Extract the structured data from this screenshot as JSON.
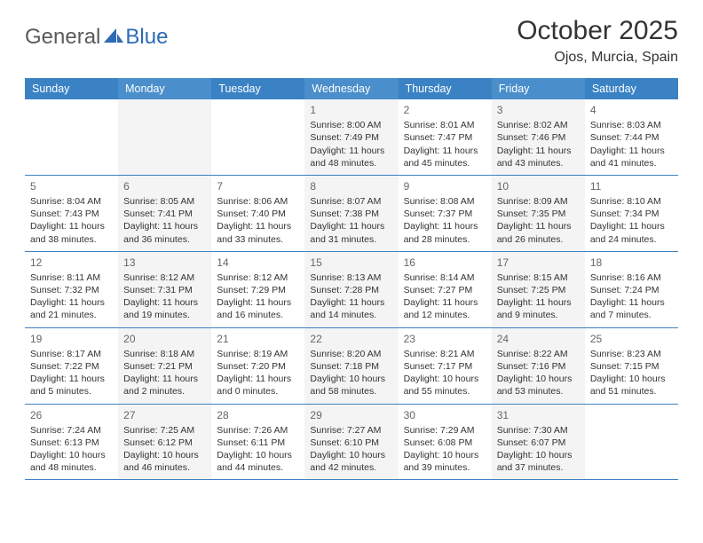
{
  "logo": {
    "text1": "General",
    "text2": "Blue"
  },
  "title": "October 2025",
  "location": "Ojos, Murcia, Spain",
  "colors": {
    "header_bg": "#3a82c4",
    "header_bg_alt": "#4a8ecb",
    "border": "#3a82c4",
    "cell_alt_bg": "#f4f4f4",
    "logo_gray": "#5a5a5a",
    "logo_blue": "#2d6bb5"
  },
  "weekdays": [
    "Sunday",
    "Monday",
    "Tuesday",
    "Wednesday",
    "Thursday",
    "Friday",
    "Saturday"
  ],
  "weeks": [
    [
      null,
      null,
      null,
      {
        "n": "1",
        "sr": "8:00 AM",
        "ss": "7:49 PM",
        "dl": "11 hours and 48 minutes."
      },
      {
        "n": "2",
        "sr": "8:01 AM",
        "ss": "7:47 PM",
        "dl": "11 hours and 45 minutes."
      },
      {
        "n": "3",
        "sr": "8:02 AM",
        "ss": "7:46 PM",
        "dl": "11 hours and 43 minutes."
      },
      {
        "n": "4",
        "sr": "8:03 AM",
        "ss": "7:44 PM",
        "dl": "11 hours and 41 minutes."
      }
    ],
    [
      {
        "n": "5",
        "sr": "8:04 AM",
        "ss": "7:43 PM",
        "dl": "11 hours and 38 minutes."
      },
      {
        "n": "6",
        "sr": "8:05 AM",
        "ss": "7:41 PM",
        "dl": "11 hours and 36 minutes."
      },
      {
        "n": "7",
        "sr": "8:06 AM",
        "ss": "7:40 PM",
        "dl": "11 hours and 33 minutes."
      },
      {
        "n": "8",
        "sr": "8:07 AM",
        "ss": "7:38 PM",
        "dl": "11 hours and 31 minutes."
      },
      {
        "n": "9",
        "sr": "8:08 AM",
        "ss": "7:37 PM",
        "dl": "11 hours and 28 minutes."
      },
      {
        "n": "10",
        "sr": "8:09 AM",
        "ss": "7:35 PM",
        "dl": "11 hours and 26 minutes."
      },
      {
        "n": "11",
        "sr": "8:10 AM",
        "ss": "7:34 PM",
        "dl": "11 hours and 24 minutes."
      }
    ],
    [
      {
        "n": "12",
        "sr": "8:11 AM",
        "ss": "7:32 PM",
        "dl": "11 hours and 21 minutes."
      },
      {
        "n": "13",
        "sr": "8:12 AM",
        "ss": "7:31 PM",
        "dl": "11 hours and 19 minutes."
      },
      {
        "n": "14",
        "sr": "8:12 AM",
        "ss": "7:29 PM",
        "dl": "11 hours and 16 minutes."
      },
      {
        "n": "15",
        "sr": "8:13 AM",
        "ss": "7:28 PM",
        "dl": "11 hours and 14 minutes."
      },
      {
        "n": "16",
        "sr": "8:14 AM",
        "ss": "7:27 PM",
        "dl": "11 hours and 12 minutes."
      },
      {
        "n": "17",
        "sr": "8:15 AM",
        "ss": "7:25 PM",
        "dl": "11 hours and 9 minutes."
      },
      {
        "n": "18",
        "sr": "8:16 AM",
        "ss": "7:24 PM",
        "dl": "11 hours and 7 minutes."
      }
    ],
    [
      {
        "n": "19",
        "sr": "8:17 AM",
        "ss": "7:22 PM",
        "dl": "11 hours and 5 minutes."
      },
      {
        "n": "20",
        "sr": "8:18 AM",
        "ss": "7:21 PM",
        "dl": "11 hours and 2 minutes."
      },
      {
        "n": "21",
        "sr": "8:19 AM",
        "ss": "7:20 PM",
        "dl": "11 hours and 0 minutes."
      },
      {
        "n": "22",
        "sr": "8:20 AM",
        "ss": "7:18 PM",
        "dl": "10 hours and 58 minutes."
      },
      {
        "n": "23",
        "sr": "8:21 AM",
        "ss": "7:17 PM",
        "dl": "10 hours and 55 minutes."
      },
      {
        "n": "24",
        "sr": "8:22 AM",
        "ss": "7:16 PM",
        "dl": "10 hours and 53 minutes."
      },
      {
        "n": "25",
        "sr": "8:23 AM",
        "ss": "7:15 PM",
        "dl": "10 hours and 51 minutes."
      }
    ],
    [
      {
        "n": "26",
        "sr": "7:24 AM",
        "ss": "6:13 PM",
        "dl": "10 hours and 48 minutes."
      },
      {
        "n": "27",
        "sr": "7:25 AM",
        "ss": "6:12 PM",
        "dl": "10 hours and 46 minutes."
      },
      {
        "n": "28",
        "sr": "7:26 AM",
        "ss": "6:11 PM",
        "dl": "10 hours and 44 minutes."
      },
      {
        "n": "29",
        "sr": "7:27 AM",
        "ss": "6:10 PM",
        "dl": "10 hours and 42 minutes."
      },
      {
        "n": "30",
        "sr": "7:29 AM",
        "ss": "6:08 PM",
        "dl": "10 hours and 39 minutes."
      },
      {
        "n": "31",
        "sr": "7:30 AM",
        "ss": "6:07 PM",
        "dl": "10 hours and 37 minutes."
      },
      null
    ]
  ],
  "labels": {
    "sunrise": "Sunrise:",
    "sunset": "Sunset:",
    "daylight": "Daylight:"
  }
}
